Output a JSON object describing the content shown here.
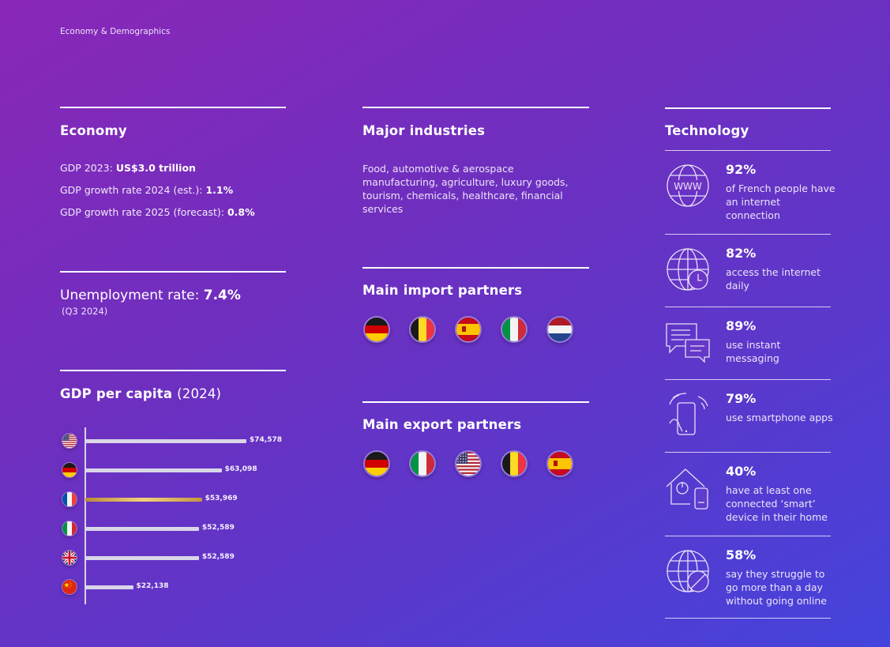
{
  "breadcrumb": "Economy & Demographics",
  "economy": {
    "title": "Economy",
    "gdp_label": "GDP 2023: ",
    "gdp_value": "US$3.0 trillion",
    "growth24_label": "GDP growth rate 2024 (est.): ",
    "growth24_value": "1.1%",
    "growth25_label": "GDP growth rate 2025 (forecast): ",
    "growth25_value": "0.8%"
  },
  "unemployment": {
    "label": "Unemployment rate: ",
    "value": "7.4%",
    "period": "(Q3 2024)"
  },
  "gdp_per_capita": {
    "title": "GDP per capita",
    "year": "(2024)"
  },
  "chart_data": {
    "type": "bar",
    "orientation": "horizontal",
    "categories": [
      "United States",
      "Germany",
      "France",
      "Italy",
      "United Kingdom",
      "China"
    ],
    "flags": [
      "us-flag-icon",
      "de-flag-icon",
      "fr-flag-icon",
      "it-flag-icon",
      "uk-flag-icon",
      "cn-flag-icon"
    ],
    "values": [
      74578,
      63098,
      53969,
      52589,
      52589,
      22138
    ],
    "labels": [
      "$74,578",
      "$63,098",
      "$53,969",
      "$52,589",
      "$52,589",
      "$22,138"
    ],
    "highlight_index": 2,
    "colors": {
      "bar": "#d9d6e8",
      "highlight": "#e0b55a"
    },
    "xlim": [
      0,
      74578
    ]
  },
  "industries": {
    "title": "Major industries",
    "text": "Food, automotive & aerospace manufacturing, agriculture, luxury goods, tourism, chemicals, healthcare, financial services"
  },
  "imports": {
    "title": "Main import partners",
    "flags": [
      "de-flag-icon",
      "be-flag-icon",
      "es-flag-icon",
      "it-flag-icon",
      "nl-flag-icon"
    ]
  },
  "exports": {
    "title": "Main export partners",
    "flags": [
      "de-flag-icon",
      "it-flag-icon",
      "us-flag-icon",
      "be-flag-icon",
      "es-flag-icon"
    ]
  },
  "technology": {
    "title": "Technology",
    "items": [
      {
        "icon": "www-globe-icon",
        "pct": "92%",
        "desc": "of French people have an internet connection"
      },
      {
        "icon": "globe-clock-icon",
        "pct": "82%",
        "desc": "access the internet daily"
      },
      {
        "icon": "chat-bubbles-icon",
        "pct": "89%",
        "desc": "use instant messaging"
      },
      {
        "icon": "smartphone-hand-icon",
        "pct": "79%",
        "desc": "use smartphone apps"
      },
      {
        "icon": "smart-home-icon",
        "pct": "40%",
        "desc": "have at least one connected ‘smart’ device in their home"
      },
      {
        "icon": "globe-blocked-icon",
        "pct": "58%",
        "desc": "say they struggle to go more than a day without going online"
      }
    ]
  }
}
